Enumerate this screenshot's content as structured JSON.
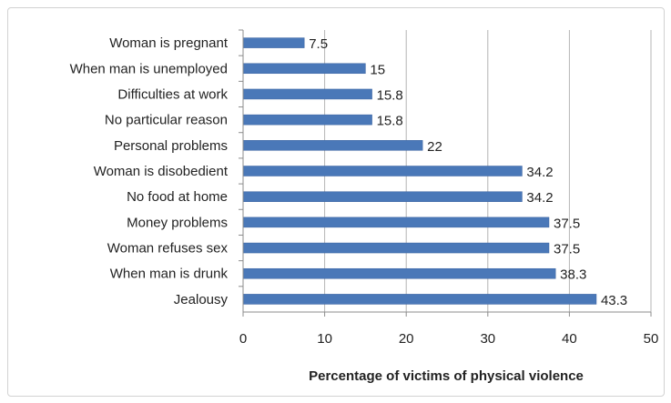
{
  "chart_data": {
    "type": "bar",
    "orientation": "horizontal",
    "categories": [
      "Woman is pregnant",
      "When man is unemployed",
      "Difficulties at work",
      "No particular reason",
      "Personal problems",
      "Woman is disobedient",
      "No food at home",
      "Money problems",
      "Woman refuses sex",
      "When man is drunk",
      "Jealousy"
    ],
    "values": [
      7.5,
      15,
      15.8,
      15.8,
      22,
      34.2,
      34.2,
      37.5,
      37.5,
      38.3,
      43.3
    ],
    "value_labels": [
      "7.5",
      "15",
      "15.8",
      "15.8",
      "22",
      "34.2",
      "34.2",
      "37.5",
      "37.5",
      "38.3",
      "43.3"
    ],
    "xlabel": "Percentage of victims of physical violence",
    "ylabel": "",
    "xlim": [
      0,
      50
    ],
    "xticks": [
      "0",
      "10",
      "20",
      "30",
      "40",
      "50"
    ],
    "grid": "vertical",
    "legend": "none",
    "colors": {
      "bar": "#4a78b8",
      "bar_edge": "#3a62a0",
      "grid": "#b4b4b4",
      "axis": "#8c8c8c"
    }
  }
}
